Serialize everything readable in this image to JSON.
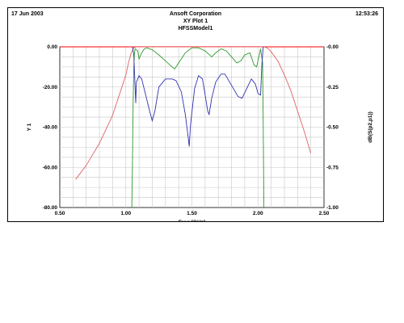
{
  "header": {
    "date": "17 Jun 2003",
    "company": "Ansoft Corporation",
    "plot_title": "XY Plot 1",
    "model": "HFSSModel1",
    "time": "12:53:26"
  },
  "colors": {
    "background": "#ffffff",
    "grid": "#c8c8c8",
    "axis_line": "#ff0000",
    "series_red": "#e06060",
    "series_green": "#2a9a2a",
    "series_blue": "#3030b0"
  },
  "chart_data": {
    "type": "line",
    "xlabel": "Freq [GHz]",
    "ylabel": "Y 1",
    "y2label": "dB(S(p2,p1))",
    "xlim": [
      0.5,
      2.5
    ],
    "ylim": [
      -80,
      0
    ],
    "y2lim": [
      -1.0,
      0.0
    ],
    "grid": true,
    "x_ticks": [
      "0.50",
      "1.00",
      "1.50",
      "2.00",
      "2.50"
    ],
    "y_ticks": [
      "0.00",
      "-20.00",
      "-40.00",
      "-60.00",
      "-80.00"
    ],
    "y2_ticks": [
      "-0.00",
      "-0.25",
      "-0.50",
      "-0.75",
      "-1.00"
    ],
    "series": [
      {
        "color": "#e06060",
        "axis": "left",
        "points": [
          [
            0.62,
            -66
          ],
          [
            0.7,
            -59
          ],
          [
            0.8,
            -48
          ],
          [
            0.9,
            -34
          ],
          [
            0.95,
            -24
          ],
          [
            1.0,
            -14
          ],
          [
            1.02,
            -8
          ],
          [
            1.04,
            -3
          ],
          [
            1.06,
            -0.5
          ],
          [
            1.08,
            0
          ],
          [
            1.2,
            0
          ],
          [
            1.5,
            0
          ],
          [
            1.8,
            0
          ],
          [
            2.0,
            0
          ],
          [
            2.05,
            0
          ],
          [
            2.08,
            -1
          ],
          [
            2.1,
            -2.5
          ],
          [
            2.15,
            -7
          ],
          [
            2.2,
            -14
          ],
          [
            2.25,
            -22
          ],
          [
            2.3,
            -32
          ],
          [
            2.35,
            -42
          ],
          [
            2.4,
            -53
          ]
        ]
      },
      {
        "color": "#2a9a2a",
        "axis": "left",
        "points": [
          [
            1.045,
            -80
          ],
          [
            1.05,
            -60
          ],
          [
            1.055,
            -30
          ],
          [
            1.06,
            -10
          ],
          [
            1.065,
            -3
          ],
          [
            1.07,
            -1
          ],
          [
            1.09,
            -2
          ],
          [
            1.1,
            -6
          ],
          [
            1.12,
            -3
          ],
          [
            1.14,
            -1
          ],
          [
            1.16,
            -0.5
          ],
          [
            1.2,
            -1.5
          ],
          [
            1.25,
            -4
          ],
          [
            1.3,
            -7
          ],
          [
            1.35,
            -10
          ],
          [
            1.37,
            -11
          ],
          [
            1.4,
            -8
          ],
          [
            1.45,
            -3
          ],
          [
            1.5,
            -0.5
          ],
          [
            1.55,
            -0.5
          ],
          [
            1.6,
            -2
          ],
          [
            1.65,
            -5
          ],
          [
            1.68,
            -3
          ],
          [
            1.72,
            -1
          ],
          [
            1.76,
            -2
          ],
          [
            1.8,
            -5
          ],
          [
            1.84,
            -8
          ],
          [
            1.87,
            -7
          ],
          [
            1.9,
            -4
          ],
          [
            1.94,
            -3
          ],
          [
            1.97,
            -9
          ],
          [
            1.99,
            -10
          ],
          [
            2.01,
            -4
          ],
          [
            2.02,
            -1
          ],
          [
            2.035,
            -8
          ],
          [
            2.04,
            -40
          ],
          [
            2.045,
            -80
          ]
        ]
      },
      {
        "color": "#3030b0",
        "axis": "right",
        "points": [
          [
            1.05,
            0
          ],
          [
            1.06,
            -0.05
          ],
          [
            1.07,
            -0.25
          ],
          [
            1.075,
            -0.35
          ],
          [
            1.08,
            -0.22
          ],
          [
            1.1,
            -0.18
          ],
          [
            1.12,
            -0.2
          ],
          [
            1.15,
            -0.3
          ],
          [
            1.18,
            -0.4
          ],
          [
            1.2,
            -0.46
          ],
          [
            1.22,
            -0.4
          ],
          [
            1.25,
            -0.25
          ],
          [
            1.3,
            -0.2
          ],
          [
            1.35,
            -0.2
          ],
          [
            1.38,
            -0.21
          ],
          [
            1.42,
            -0.28
          ],
          [
            1.45,
            -0.42
          ],
          [
            1.47,
            -0.55
          ],
          [
            1.48,
            -0.62
          ],
          [
            1.49,
            -0.48
          ],
          [
            1.52,
            -0.26
          ],
          [
            1.55,
            -0.18
          ],
          [
            1.58,
            -0.2
          ],
          [
            1.6,
            -0.3
          ],
          [
            1.62,
            -0.4
          ],
          [
            1.63,
            -0.42
          ],
          [
            1.65,
            -0.32
          ],
          [
            1.68,
            -0.22
          ],
          [
            1.72,
            -0.17
          ],
          [
            1.75,
            -0.17
          ],
          [
            1.8,
            -0.24
          ],
          [
            1.85,
            -0.31
          ],
          [
            1.88,
            -0.32
          ],
          [
            1.92,
            -0.25
          ],
          [
            1.95,
            -0.2
          ],
          [
            1.98,
            -0.23
          ],
          [
            2.0,
            -0.29
          ],
          [
            2.02,
            -0.3
          ],
          [
            2.03,
            -0.1
          ],
          [
            2.04,
            0
          ],
          [
            2.05,
            0
          ]
        ]
      }
    ]
  }
}
